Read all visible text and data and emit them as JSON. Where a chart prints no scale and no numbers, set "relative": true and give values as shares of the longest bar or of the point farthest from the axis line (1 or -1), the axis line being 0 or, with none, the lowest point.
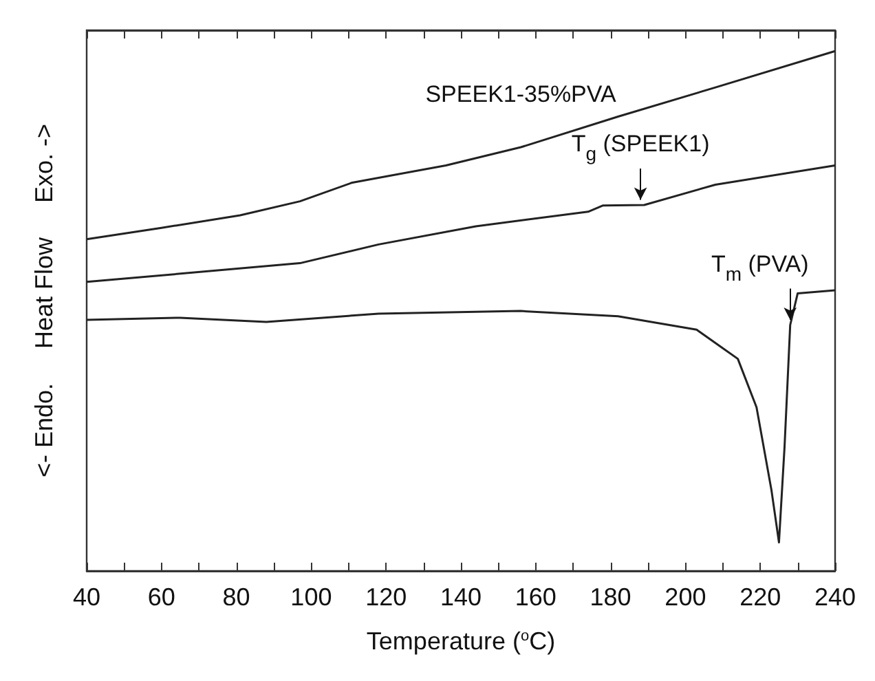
{
  "chart_data": {
    "type": "line",
    "relative": true,
    "xlabel": "Temperature ($^{o}$C)",
    "ylabel": "<- Endo.     Heat Flow     Exo. ->",
    "xlim": [
      40,
      240
    ],
    "xticks": [
      40,
      60,
      80,
      100,
      120,
      140,
      160,
      180,
      200,
      220,
      240
    ],
    "line_style": "solid",
    "grid": false,
    "tick_labels": "x",
    "series": [
      {
        "name": "SPEEK1-35%PVA",
        "color": "#222222",
        "x": [
          40,
          60,
          81,
          97,
          111,
          136,
          156,
          182,
          208,
          240
        ],
        "values": [
          0.638,
          0.66,
          0.684,
          0.711,
          0.747,
          0.78,
          0.815,
          0.874,
          0.93,
          1.0
        ]
      },
      {
        "color": "#222222",
        "x": [
          40,
          97,
          118,
          144,
          174,
          178,
          189,
          208,
          240
        ],
        "values": [
          0.556,
          0.592,
          0.628,
          0.663,
          0.691,
          0.703,
          0.704,
          0.743,
          0.78
        ]
      },
      {
        "color": "#222222",
        "x": [
          40,
          65,
          88,
          118,
          156,
          182,
          203,
          214,
          219,
          223,
          225,
          226.5,
          228,
          230,
          240
        ],
        "values": [
          0.483,
          0.487,
          0.479,
          0.495,
          0.5,
          0.49,
          0.464,
          0.408,
          0.315,
          0.155,
          0.055,
          0.24,
          0.473,
          0.534,
          0.54
        ]
      }
    ],
    "annotations": [
      {
        "text": "T$_{g}$ (SPEEK1)",
        "x": 188,
        "y": 0.704
      },
      {
        "text": "T$_{m}$ (PVA)",
        "x": 228,
        "y": 0.473
      }
    ]
  }
}
